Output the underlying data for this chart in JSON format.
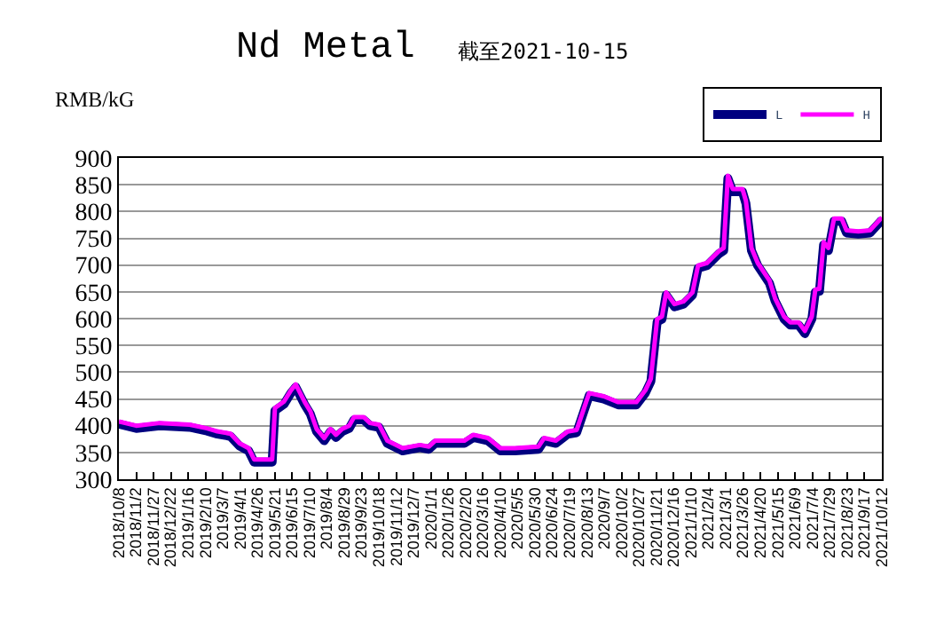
{
  "chart_data": {
    "type": "line",
    "title": "Nd Metal",
    "subtitle": "截至2021-10-15",
    "ylabel": "RMB/kG",
    "x": [
      "2018-10-08",
      "2018-11-02",
      "2018-12-06",
      "2019-01-18",
      "2019-02-12",
      "2019-02-25",
      "2019-03-18",
      "2019-03-31",
      "2019-04-13",
      "2019-04-21",
      "2019-05-17",
      "2019-05-21",
      "2019-06-03",
      "2019-06-13",
      "2019-06-20",
      "2019-07-03",
      "2019-07-11",
      "2019-07-20",
      "2019-07-31",
      "2019-08-09",
      "2019-08-17",
      "2019-08-26",
      "2019-09-05",
      "2019-09-12",
      "2019-09-26",
      "2019-10-05",
      "2019-10-18",
      "2019-10-30",
      "2019-11-21",
      "2019-12-16",
      "2019-12-29",
      "2020-01-07",
      "2020-02-18",
      "2020-03-02",
      "2020-03-23",
      "2020-04-10",
      "2020-05-01",
      "2020-06-04",
      "2020-06-12",
      "2020-06-29",
      "2020-07-16",
      "2020-07-29",
      "2020-08-16",
      "2020-09-06",
      "2020-09-27",
      "2020-10-23",
      "2020-11-05",
      "2020-11-13",
      "2020-11-22",
      "2020-11-29",
      "2020-12-05",
      "2020-12-17",
      "2020-12-30",
      "2021-01-12",
      "2021-01-20",
      "2021-02-02",
      "2021-02-19",
      "2021-02-26",
      "2021-03-04",
      "2021-03-11",
      "2021-03-25",
      "2021-03-30",
      "2021-04-07",
      "2021-04-16",
      "2021-05-03",
      "2021-05-11",
      "2021-05-24",
      "2021-06-02",
      "2021-06-14",
      "2021-06-23",
      "2021-07-03",
      "2021-07-08",
      "2021-07-14",
      "2021-07-20",
      "2021-07-27",
      "2021-08-04",
      "2021-08-15",
      "2021-08-22",
      "2021-09-08",
      "2021-09-25",
      "2021-10-12"
    ],
    "series": [
      {
        "name": "L",
        "color": "#000080",
        "values": [
          403,
          395,
          400,
          397,
          390,
          385,
          380,
          362,
          353,
          332,
          332,
          428,
          440,
          461,
          472,
          439,
          422,
          389,
          372,
          389,
          378,
          389,
          395,
          411,
          411,
          400,
          397,
          367,
          353,
          359,
          356,
          367,
          367,
          378,
          372,
          353,
          353,
          356,
          372,
          367,
          384,
          387,
          456,
          450,
          439,
          439,
          461,
          483,
          594,
          599,
          644,
          622,
          627,
          644,
          694,
          699,
          721,
          727,
          862,
          837,
          837,
          815,
          727,
          699,
          666,
          633,
          599,
          588,
          588,
          572,
          599,
          649,
          651,
          738,
          727,
          782,
          782,
          760,
          758,
          760,
          784
        ]
      },
      {
        "name": "H",
        "color": "#ff00ff",
        "values": [
          408,
          400,
          405,
          402,
          395,
          390,
          385,
          367,
          358,
          337,
          337,
          433,
          445,
          466,
          477,
          444,
          427,
          394,
          377,
          394,
          383,
          394,
          400,
          416,
          416,
          405,
          402,
          372,
          358,
          364,
          361,
          372,
          372,
          383,
          377,
          358,
          358,
          361,
          377,
          372,
          389,
          392,
          461,
          455,
          444,
          444,
          466,
          488,
          599,
          604,
          649,
          627,
          632,
          649,
          699,
          704,
          726,
          732,
          867,
          842,
          842,
          820,
          732,
          704,
          671,
          638,
          604,
          593,
          593,
          577,
          604,
          654,
          656,
          743,
          732,
          787,
          787,
          765,
          763,
          765,
          789
        ]
      }
    ],
    "xlim": [
      "2018-10-08",
      "2021-10-12"
    ],
    "xticks": [
      {
        "value": "2018-10-08",
        "label": "2018/10/8"
      },
      {
        "value": "2018-11-02",
        "label": "2018/11/2"
      },
      {
        "value": "2018-11-27",
        "label": "2018/11/27"
      },
      {
        "value": "2018-12-22",
        "label": "2018/12/22"
      },
      {
        "value": "2019-01-16",
        "label": "2019/1/16"
      },
      {
        "value": "2019-02-10",
        "label": "2019/2/10"
      },
      {
        "value": "2019-03-07",
        "label": "2019/3/7"
      },
      {
        "value": "2019-04-01",
        "label": "2019/4/1"
      },
      {
        "value": "2019-04-26",
        "label": "2019/4/26"
      },
      {
        "value": "2019-05-21",
        "label": "2019/5/21"
      },
      {
        "value": "2019-06-15",
        "label": "2019/6/15"
      },
      {
        "value": "2019-07-10",
        "label": "2019/7/10"
      },
      {
        "value": "2019-08-04",
        "label": "2019/8/4"
      },
      {
        "value": "2019-08-29",
        "label": "2019/8/29"
      },
      {
        "value": "2019-09-23",
        "label": "2019/9/23"
      },
      {
        "value": "2019-10-18",
        "label": "2019/10/18"
      },
      {
        "value": "2019-11-12",
        "label": "2019/11/12"
      },
      {
        "value": "2019-12-07",
        "label": "2019/12/7"
      },
      {
        "value": "2020-01-01",
        "label": "2020/1/1"
      },
      {
        "value": "2020-01-26",
        "label": "2020/1/26"
      },
      {
        "value": "2020-02-20",
        "label": "2020/2/20"
      },
      {
        "value": "2020-03-16",
        "label": "2020/3/16"
      },
      {
        "value": "2020-04-10",
        "label": "2020/4/10"
      },
      {
        "value": "2020-05-05",
        "label": "2020/5/5"
      },
      {
        "value": "2020-05-30",
        "label": "2020/5/30"
      },
      {
        "value": "2020-06-24",
        "label": "2020/6/24"
      },
      {
        "value": "2020-07-19",
        "label": "2020/7/19"
      },
      {
        "value": "2020-08-13",
        "label": "2020/8/13"
      },
      {
        "value": "2020-09-07",
        "label": "2020/9/7"
      },
      {
        "value": "2020-10-02",
        "label": "2020/10/2"
      },
      {
        "value": "2020-10-27",
        "label": "2020/10/27"
      },
      {
        "value": "2020-11-21",
        "label": "2020/11/21"
      },
      {
        "value": "2020-12-16",
        "label": "2020/12/16"
      },
      {
        "value": "2021-01-10",
        "label": "2021/1/10"
      },
      {
        "value": "2021-02-04",
        "label": "2021/2/4"
      },
      {
        "value": "2021-03-01",
        "label": "2021/3/1"
      },
      {
        "value": "2021-03-26",
        "label": "2021/3/26"
      },
      {
        "value": "2021-04-20",
        "label": "2021/4/20"
      },
      {
        "value": "2021-05-15",
        "label": "2021/5/15"
      },
      {
        "value": "2021-06-09",
        "label": "2021/6/9"
      },
      {
        "value": "2021-07-04",
        "label": "2021/7/4"
      },
      {
        "value": "2021-07-29",
        "label": "2021/7/29"
      },
      {
        "value": "2021-08-23",
        "label": "2021/8/23"
      },
      {
        "value": "2021-09-17",
        "label": "2021/9/17"
      },
      {
        "value": "2021-10-12",
        "label": "2021/10/12"
      }
    ],
    "ylim": [
      300,
      900
    ],
    "yticks": [
      300,
      350,
      400,
      450,
      500,
      550,
      600,
      650,
      700,
      750,
      800,
      850,
      900
    ],
    "grid": "y",
    "legend": "top right",
    "marker": "none",
    "line_style": "solid"
  }
}
